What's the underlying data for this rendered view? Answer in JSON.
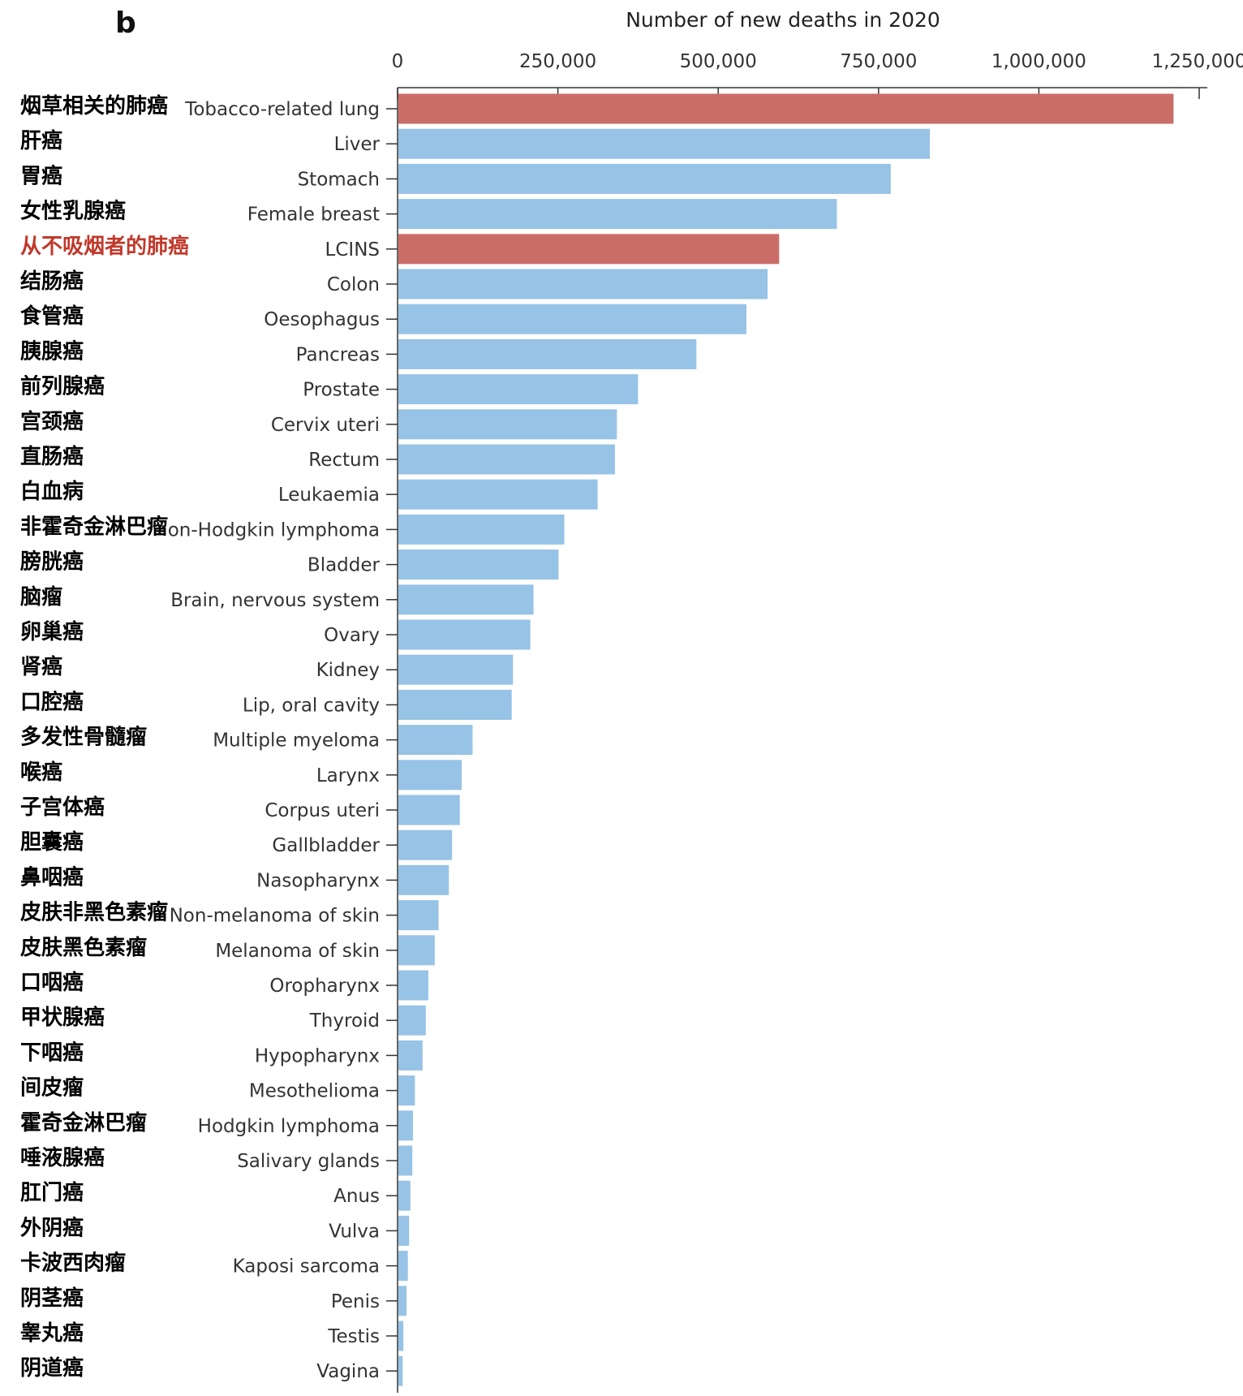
{
  "panel_label": "b",
  "chart_data": {
    "type": "bar",
    "orientation": "horizontal",
    "title": "Number of new deaths in 2020",
    "xlabel": "Number of new deaths in 2020",
    "ylabel": "",
    "xlim": [
      0,
      1270000
    ],
    "xticks": [
      0,
      250000,
      500000,
      750000,
      1000000,
      1250000
    ],
    "xtick_labels": [
      "0",
      "250,000",
      "500,000",
      "750,000",
      "1,000,000",
      "1,250,000"
    ],
    "grid": false,
    "legend": "none",
    "colors": {
      "highlight": "#cb6d67",
      "default": "#97c3e6",
      "highlight_label": "#c0392b",
      "label": "#000000",
      "axis": "#333333"
    },
    "categories": [
      "Tobacco-related lung",
      "Liver",
      "Stomach",
      "Female breast",
      "LCINS",
      "Colon",
      "Oesophagus",
      "Pancreas",
      "Prostate",
      "Cervix uteri",
      "Rectum",
      "Leukaemia",
      "on-Hodgkin lymphoma",
      "Bladder",
      "Brain, nervous system",
      "Ovary",
      "Kidney",
      "Lip, oral cavity",
      "Multiple myeloma",
      "Larynx",
      "Corpus uteri",
      "Gallbladder",
      "Nasopharynx",
      "Non-melanoma of skin",
      "Melanoma of skin",
      "Oropharynx",
      "Thyroid",
      "Hypopharynx",
      "Mesothelioma",
      "Hodgkin lymphoma",
      "Salivary glands",
      "Anus",
      "Vulva",
      "Kaposi sarcoma",
      "Penis",
      "Testis",
      "Vagina"
    ],
    "categories_zh": [
      "烟草相关的肺癌",
      "肝癌",
      "胃癌",
      "女性乳腺癌",
      "从不吸烟者的肺癌",
      "结肠癌",
      "食管癌",
      "胰腺癌",
      "前列腺癌",
      "宫颈癌",
      "直肠癌",
      "白血病",
      "非霍奇金淋巴瘤",
      "膀胱癌",
      "脑瘤",
      "卵巢癌",
      "肾癌",
      "口腔癌",
      "多发性骨髓瘤",
      "喉癌",
      "子宫体癌",
      "胆囊癌",
      "鼻咽癌",
      "皮肤非黑色素瘤",
      "皮肤黑色素瘤",
      "口咽癌",
      "甲状腺癌",
      "下咽癌",
      "间皮瘤",
      "霍奇金淋巴瘤",
      "唾液腺癌",
      "肛门癌",
      "外阴癌",
      "卡波西肉瘤",
      "阴茎癌",
      "睾丸癌",
      "阴道癌"
    ],
    "highlight": [
      true,
      false,
      false,
      false,
      true,
      false,
      false,
      false,
      false,
      false,
      false,
      false,
      false,
      false,
      false,
      false,
      false,
      false,
      false,
      false,
      false,
      false,
      false,
      false,
      false,
      false,
      false,
      false,
      false,
      false,
      false,
      false,
      false,
      false,
      false,
      false,
      false
    ],
    "values": [
      1210000,
      830000,
      769000,
      685000,
      595000,
      577000,
      544000,
      466000,
      375000,
      342000,
      339000,
      312000,
      260000,
      251000,
      212000,
      207000,
      180000,
      178000,
      117000,
      100000,
      97000,
      85000,
      80000,
      64000,
      58000,
      48000,
      44000,
      39000,
      27000,
      24000,
      23000,
      20000,
      18000,
      16000,
      14000,
      9000,
      8000
    ]
  }
}
